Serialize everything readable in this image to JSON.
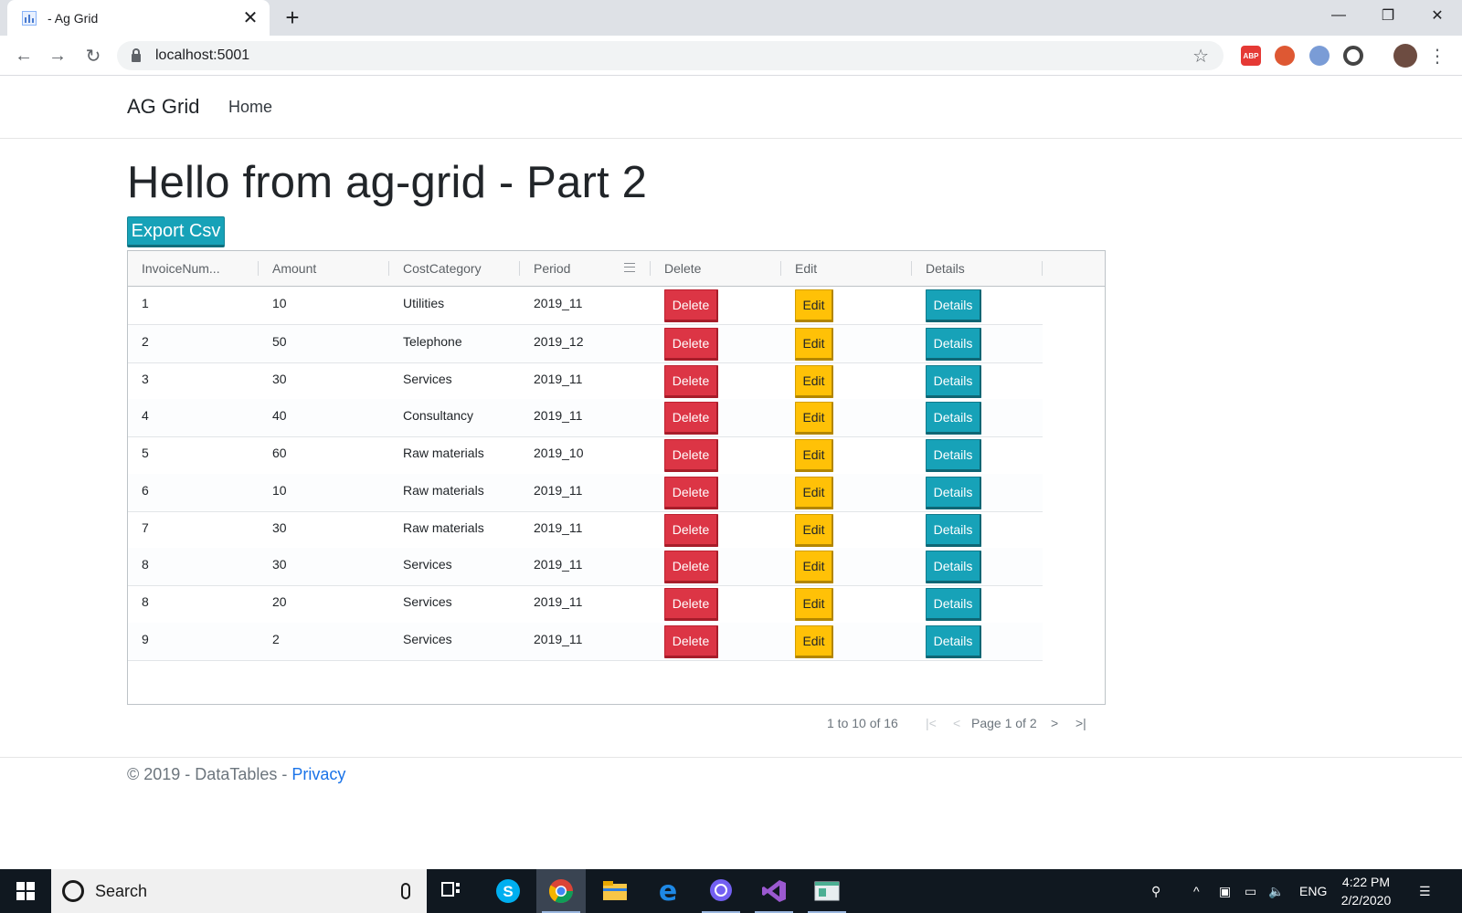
{
  "browser": {
    "tab_title": "- Ag Grid",
    "url": "localhost:5001",
    "new_tab": "+",
    "close": "✕"
  },
  "navbar": {
    "brand": "AG Grid",
    "home": "Home"
  },
  "main": {
    "title": "Hello from ag-grid - Part 2",
    "export_label": "Export Csv"
  },
  "grid": {
    "columns": [
      "InvoiceNum...",
      "Amount",
      "CostCategory",
      "Period",
      "Delete",
      "Edit",
      "Details"
    ],
    "rows": [
      {
        "invoice": "1",
        "amount": "10",
        "category": "Utilities",
        "period": "2019_11"
      },
      {
        "invoice": "2",
        "amount": "50",
        "category": "Telephone",
        "period": "2019_12"
      },
      {
        "invoice": "3",
        "amount": "30",
        "category": "Services",
        "period": "2019_11"
      },
      {
        "invoice": "4",
        "amount": "40",
        "category": "Consultancy",
        "period": "2019_11"
      },
      {
        "invoice": "5",
        "amount": "60",
        "category": "Raw materials",
        "period": "2019_10"
      },
      {
        "invoice": "6",
        "amount": "10",
        "category": "Raw materials",
        "period": "2019_11"
      },
      {
        "invoice": "7",
        "amount": "30",
        "category": "Raw materials",
        "period": "2019_11"
      },
      {
        "invoice": "8",
        "amount": "30",
        "category": "Services",
        "period": "2019_11"
      },
      {
        "invoice": "8",
        "amount": "20",
        "category": "Services",
        "period": "2019_11"
      },
      {
        "invoice": "9",
        "amount": "2",
        "category": "Services",
        "period": "2019_11"
      }
    ],
    "delete_label": "Delete",
    "edit_label": "Edit",
    "details_label": "Details"
  },
  "pager": {
    "summary": "1 to 10 of 16",
    "page": "Page 1 of 2",
    "first": "|<",
    "prev": "<",
    "next": ">",
    "last": ">|"
  },
  "footer": {
    "text": "© 2019 - DataTables - ",
    "privacy": "Privacy"
  },
  "taskbar": {
    "search_placeholder": "Search",
    "lang": "ENG",
    "time": "4:22 PM",
    "date": "2/2/2020"
  },
  "colors": {
    "danger": "#dc3545",
    "warning": "#ffc107",
    "info": "#17a2b8"
  }
}
